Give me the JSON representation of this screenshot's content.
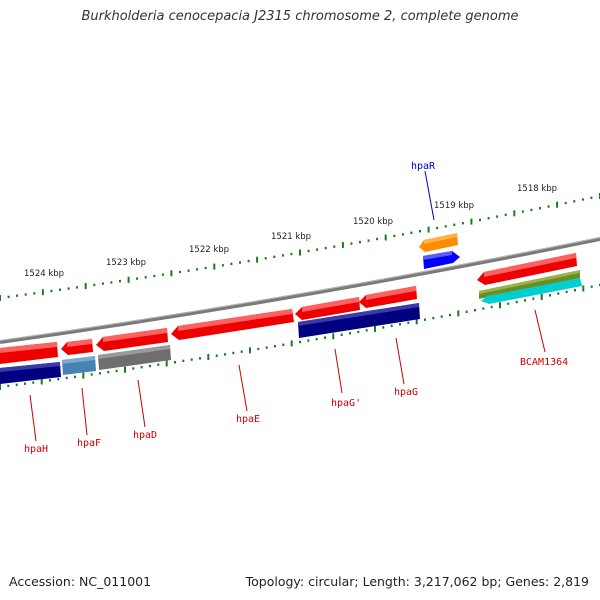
{
  "title": "Burkholderia cenocepacia J2315 chromosome 2, complete genome",
  "footer": {
    "accession": "Accession: NC_011001",
    "topology": "Topology: circular; Length: 3,217,062 bp; Genes: 2,819"
  },
  "colors": {
    "backbone": "#808080",
    "tick_marks": "#1e7a1e",
    "label_red": "#cc0000",
    "label_blue": "#0000cc",
    "gene_red": "#ee0000",
    "gene_navy": "#000080",
    "gene_steelblue": "#4682b4",
    "gene_gray": "#6e6e6e",
    "gene_orange": "#ff8c00",
    "gene_blue": "#0000ff",
    "gene_olive": "#6b8e23",
    "gene_cyan": "#00ced1"
  },
  "scale_labels": [
    "1524 kbp",
    "1523 kbp",
    "1522 kbp",
    "1521 kbp",
    "1520 kbp",
    "1519 kbp",
    "1518 kbp"
  ],
  "gene_labels": [
    {
      "name": "hpaR",
      "color": "blue"
    },
    {
      "name": "BCAM1364",
      "color": "red"
    },
    {
      "name": "hpaG",
      "color": "red"
    },
    {
      "name": "hpaG'",
      "color": "red"
    },
    {
      "name": "hpaE",
      "color": "red"
    },
    {
      "name": "hpaD",
      "color": "red"
    },
    {
      "name": "hpaF",
      "color": "red"
    },
    {
      "name": "hpaH",
      "color": "red"
    }
  ],
  "features": [
    {
      "id": "hpaR",
      "color": "gene_orange",
      "direction": "left"
    },
    {
      "id": "hpaR-blue",
      "color": "gene_blue",
      "direction": "right"
    },
    {
      "id": "BCAM1364",
      "color": "gene_red",
      "direction": "left"
    },
    {
      "id": "BCAM1364-olive",
      "color": "gene_olive",
      "direction": "none"
    },
    {
      "id": "BCAM1364-cyan",
      "color": "gene_cyan",
      "direction": "left"
    },
    {
      "id": "hpaG",
      "color": "gene_red",
      "direction": "left"
    },
    {
      "id": "hpaG'",
      "color": "gene_red",
      "direction": "left"
    },
    {
      "id": "hpaG-navy",
      "color": "gene_navy",
      "direction": "none"
    },
    {
      "id": "hpaE",
      "color": "gene_red",
      "direction": "left"
    },
    {
      "id": "hpaD",
      "color": "gene_red",
      "direction": "left"
    },
    {
      "id": "hpaD-gray",
      "color": "gene_gray",
      "direction": "none"
    },
    {
      "id": "hpaF",
      "color": "gene_red",
      "direction": "left"
    },
    {
      "id": "hpaF-steel",
      "color": "gene_steelblue",
      "direction": "none"
    },
    {
      "id": "hpaH",
      "color": "gene_red",
      "direction": "left"
    },
    {
      "id": "hpaH-navy",
      "color": "gene_navy",
      "direction": "none"
    }
  ]
}
